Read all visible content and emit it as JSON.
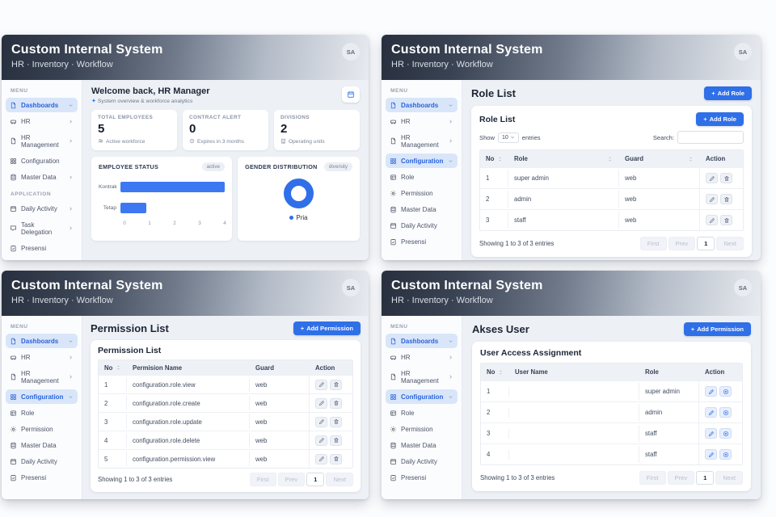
{
  "app": {
    "title": "Custom Internal System",
    "subtitle": "HR · Inventory · Workflow",
    "avatar": "SA"
  },
  "ui": {
    "plus": "+",
    "menu_label": "MENU",
    "application_label": "APPLICATION",
    "show_label": "Show",
    "show_value": "10",
    "entries_label": "entries",
    "search_label": "Search:",
    "showing_text": "Showing 1 to 3 of 3 entries",
    "pagination": {
      "first": "First",
      "prev": "Prev",
      "page": "1",
      "next": "Next"
    }
  },
  "sidebar_dashboard": {
    "items": [
      {
        "label": "Dashboards"
      },
      {
        "label": "HR"
      },
      {
        "label": "HR Management"
      },
      {
        "label": "Configuration"
      },
      {
        "label": "Master Data"
      }
    ],
    "app_items": [
      {
        "label": "Daily Activity"
      },
      {
        "label": "Task Delegation"
      },
      {
        "label": "Presensi"
      }
    ]
  },
  "sidebar_config": {
    "items": [
      {
        "label": "Dashboards"
      },
      {
        "label": "HR"
      },
      {
        "label": "HR Management"
      },
      {
        "label": "Configuration"
      },
      {
        "label": "Role"
      },
      {
        "label": "Permission"
      },
      {
        "label": "Master Data"
      },
      {
        "label": "Daily Activity"
      },
      {
        "label": "Presensi"
      }
    ]
  },
  "dashboard": {
    "welcome_title": "Welcome back, HR Manager",
    "sparkle": "✦",
    "welcome_subtitle": "System overview & workforce analytics",
    "stats": [
      {
        "label": "TOTAL EMPLOYEES",
        "value": "5",
        "caption": "Active workforce"
      },
      {
        "label": "CONTRACT ALERT",
        "value": "0",
        "caption": "Expires in 3 months"
      },
      {
        "label": "DIVISIONS",
        "value": "2",
        "caption": "Operating units"
      }
    ],
    "chart_data": [
      {
        "type": "bar",
        "title": "EMPLOYEE STATUS",
        "badge": "active",
        "orientation": "horizontal",
        "categories": [
          "Kontrak",
          "Tetap"
        ],
        "values": [
          4,
          1
        ],
        "xticks": [
          "0",
          "1",
          "2",
          "3",
          "4"
        ],
        "xlim": [
          0,
          4
        ],
        "bar_color": "#3d78f2"
      },
      {
        "type": "donut",
        "title": "GENDER DISTRIBUTION",
        "badge": "diversity",
        "segments": [
          {
            "label": "Pria",
            "value": 100,
            "color": "#2f6fe8"
          }
        ]
      }
    ]
  },
  "role_list": {
    "page_title": "Role List",
    "add_label": "Add Role",
    "card_title": "Role List",
    "headers": [
      "No",
      "Role",
      "Guard",
      "Action"
    ],
    "rows": [
      {
        "no": "1",
        "role": "super admin",
        "guard": "web"
      },
      {
        "no": "2",
        "role": "admin",
        "guard": "web"
      },
      {
        "no": "3",
        "role": "staff",
        "guard": "web"
      }
    ]
  },
  "permission_list": {
    "page_title": "Permission List",
    "add_label": "Add Permission",
    "card_title": "Permission List",
    "headers": [
      "No",
      "Permision Name",
      "Guard",
      "Action"
    ],
    "rows": [
      {
        "no": "1",
        "name": "configuration.role.view",
        "guard": "web"
      },
      {
        "no": "2",
        "name": "configuration.role.create",
        "guard": "web"
      },
      {
        "no": "3",
        "name": "configuration.role.update",
        "guard": "web"
      },
      {
        "no": "4",
        "name": "configuration.role.delete",
        "guard": "web"
      },
      {
        "no": "5",
        "name": "configuration.permission.view",
        "guard": "web"
      }
    ]
  },
  "akses_user": {
    "page_title": "Akses User",
    "add_label": "Add Permission",
    "card_title": "User Access Assignment",
    "headers": [
      "No",
      "User Name",
      "Role",
      "Action"
    ],
    "rows": [
      {
        "no": "1",
        "name_redacted": true,
        "role": "super admin"
      },
      {
        "no": "2",
        "name_redacted": true,
        "role": "admin"
      },
      {
        "no": "3",
        "name_redacted": true,
        "role": "staff"
      },
      {
        "no": "4",
        "name_redacted": true,
        "role": "staff"
      }
    ]
  },
  "colors": {
    "accent": "#2f6fe8",
    "bar_blue": "#3d78f2",
    "header_dark": "#28303f"
  }
}
